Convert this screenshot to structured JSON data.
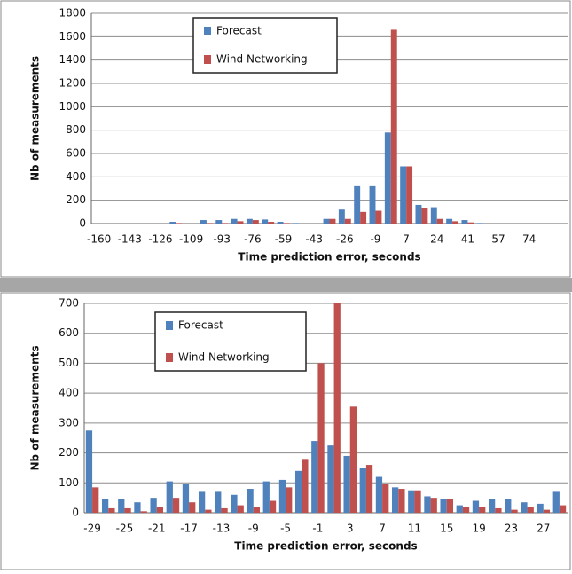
{
  "chart_data": [
    {
      "type": "bar",
      "y_label": "Nb of measurements",
      "x_label": "Time prediction error, seconds",
      "categories": [
        "-160",
        null,
        "-143",
        null,
        "-126",
        null,
        "-109",
        null,
        "-93",
        null,
        "-76",
        null,
        "-59",
        null,
        "-43",
        null,
        "-26",
        null,
        "-9",
        null,
        "7",
        null,
        "24",
        null,
        "41",
        null,
        "57",
        null,
        "74",
        null,
        null
      ],
      "series": [
        {
          "name": "Forecast",
          "color": "#4f81bd",
          "values": [
            0,
            0,
            0,
            0,
            0,
            15,
            0,
            30,
            30,
            40,
            40,
            35,
            15,
            5,
            0,
            40,
            120,
            320,
            320,
            780,
            490,
            160,
            140,
            40,
            30,
            5,
            0,
            0,
            0,
            0,
            0
          ]
        },
        {
          "name": "Wind Networking",
          "color": "#c0504d",
          "values": [
            0,
            0,
            0,
            0,
            0,
            5,
            0,
            5,
            5,
            20,
            30,
            15,
            5,
            0,
            0,
            40,
            40,
            100,
            110,
            1660,
            490,
            130,
            40,
            20,
            10,
            0,
            0,
            0,
            0,
            0,
            0
          ]
        }
      ],
      "ylim": [
        0,
        1800
      ],
      "yticks": [
        0,
        200,
        400,
        600,
        800,
        1000,
        1200,
        1400,
        1600,
        1800
      ],
      "grid": true,
      "legend": "top-left"
    },
    {
      "type": "bar",
      "y_label": "Nb of measurements",
      "x_label": "Time prediction error, seconds",
      "categories": [
        "-29",
        null,
        "-25",
        null,
        "-21",
        null,
        "-17",
        null,
        "-13",
        null,
        "-9",
        null,
        "-5",
        null,
        "-1",
        null,
        "3",
        null,
        "7",
        null,
        "11",
        null,
        "15",
        null,
        "19",
        null,
        "23",
        null,
        "27",
        null
      ],
      "series": [
        {
          "name": "Forecast",
          "color": "#4f81bd",
          "values": [
            275,
            45,
            45,
            35,
            50,
            105,
            95,
            70,
            70,
            60,
            80,
            105,
            110,
            140,
            240,
            225,
            190,
            150,
            120,
            85,
            75,
            55,
            45,
            25,
            40,
            45,
            45,
            35,
            30,
            70
          ]
        },
        {
          "name": "Wind Networking",
          "color": "#c0504d",
          "values": [
            85,
            15,
            15,
            5,
            20,
            50,
            35,
            10,
            15,
            25,
            20,
            40,
            85,
            180,
            500,
            700,
            355,
            160,
            95,
            80,
            75,
            50,
            45,
            20,
            20,
            15,
            10,
            20,
            10,
            25
          ]
        }
      ],
      "ylim": [
        0,
        700
      ],
      "yticks": [
        0,
        100,
        200,
        300,
        400,
        500,
        600,
        700
      ],
      "grid": true,
      "legend": "top-left"
    }
  ]
}
